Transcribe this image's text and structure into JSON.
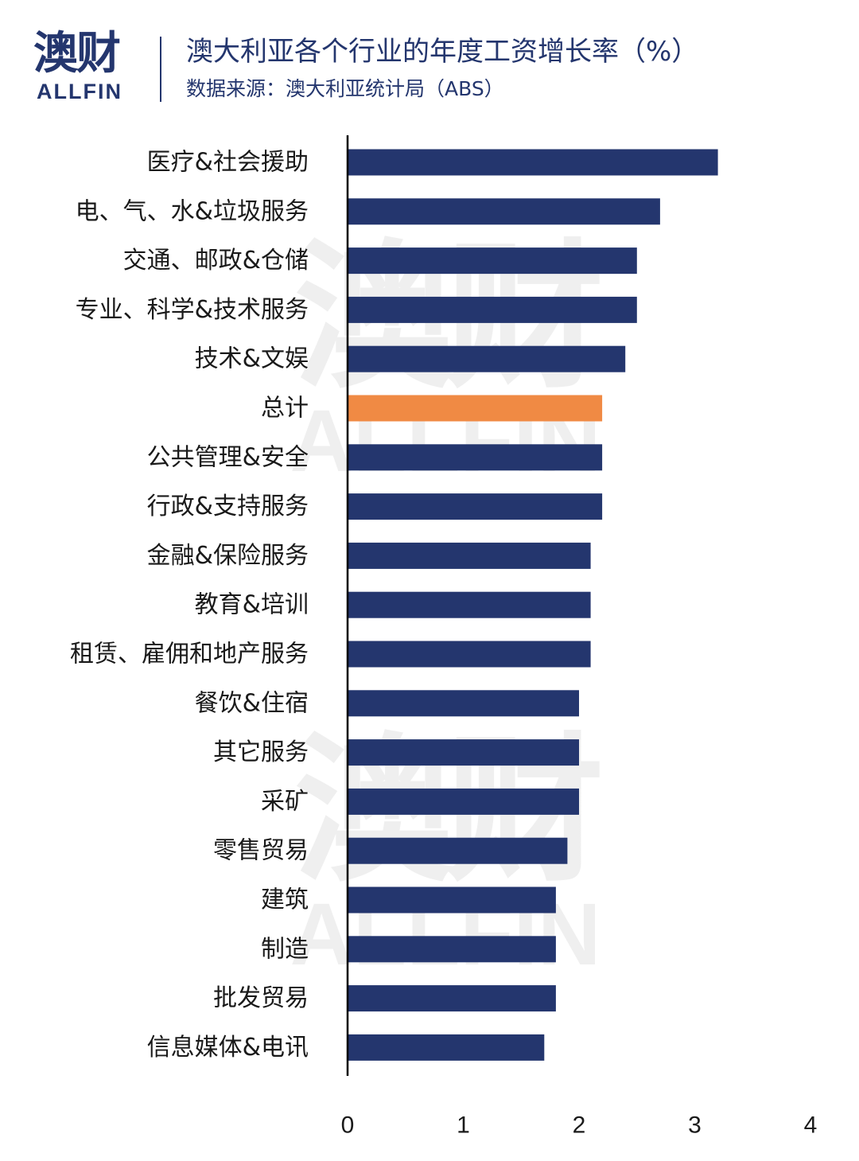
{
  "header": {
    "logo_cn": "澳财",
    "logo_en": "ALLFIN",
    "title": "澳大利亚各个行业的年度工资增长率（%）",
    "subtitle": "数据来源：澳大利亚统计局（ABS）"
  },
  "watermark": {
    "cn": "澳财",
    "en": "ALLFIN"
  },
  "chart_data": {
    "type": "bar",
    "orientation": "horizontal",
    "title": "澳大利亚各个行业的年度工资增长率（%）",
    "subtitle": "数据来源：澳大利亚统计局（ABS）",
    "categories": [
      "医疗&社会援助",
      "电、气、水&垃圾服务",
      "交通、邮政&仓储",
      "专业、科学&技术服务",
      "技术&文娱",
      "总计",
      "公共管理&安全",
      "行政&支持服务",
      "金融&保险服务",
      "教育&培训",
      "租赁、雇佣和地产服务",
      "餐饮&住宿",
      "其它服务",
      "采矿",
      "零售贸易",
      "建筑",
      "制造",
      "批发贸易",
      "信息媒体&电讯"
    ],
    "values": [
      3.2,
      2.7,
      2.5,
      2.5,
      2.4,
      2.2,
      2.2,
      2.2,
      2.1,
      2.1,
      2.1,
      2.0,
      2.0,
      2.0,
      1.9,
      1.8,
      1.8,
      1.8,
      1.7
    ],
    "highlight_category": "总计",
    "colors": {
      "bar": "#24366e",
      "highlight": "#f08a44",
      "axis": "#000000"
    },
    "xlim": [
      0,
      4
    ],
    "xticks": [
      0,
      1,
      2,
      3,
      4
    ],
    "grid": false,
    "legend": "none"
  }
}
